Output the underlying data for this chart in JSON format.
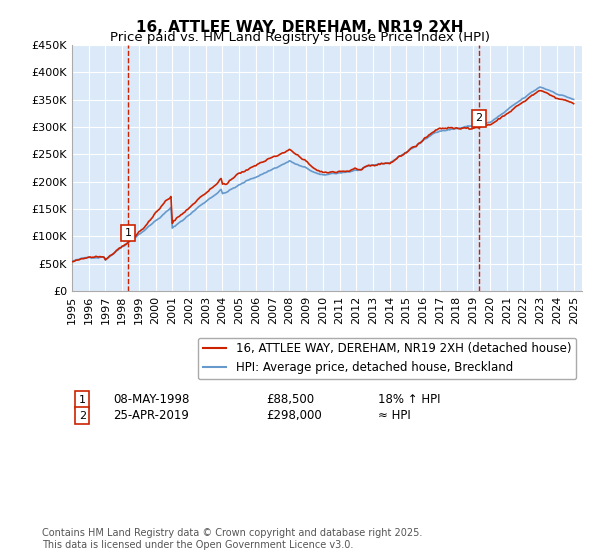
{
  "title": "16, ATTLEE WAY, DEREHAM, NR19 2XH",
  "subtitle": "Price paid vs. HM Land Registry's House Price Index (HPI)",
  "ylabel_ticks": [
    "£0",
    "£50K",
    "£100K",
    "£150K",
    "£200K",
    "£250K",
    "£300K",
    "£350K",
    "£400K",
    "£450K"
  ],
  "ylim": [
    0,
    450000
  ],
  "xlim_start": 1995.0,
  "xlim_end": 2025.5,
  "sale1_date": 1998.35,
  "sale1_price": 88500,
  "sale1_label": "1",
  "sale2_date": 2019.32,
  "sale2_price": 298000,
  "sale2_label": "2",
  "background_color": "#dce9f8",
  "plot_bg": "#dce9f8",
  "grid_color": "#ffffff",
  "hpi_line_color": "#6699cc",
  "price_line_color": "#cc2200",
  "dashed_line_color": "#cc2200",
  "legend_line1": "16, ATTLEE WAY, DEREHAM, NR19 2XH (detached house)",
  "legend_line2": "HPI: Average price, detached house, Breckland",
  "annotation1_date": "08-MAY-1998",
  "annotation1_price": "£88,500",
  "annotation1_hpi": "18% ↑ HPI",
  "annotation2_date": "25-APR-2019",
  "annotation2_price": "£298,000",
  "annotation2_hpi": "≈ HPI",
  "footnote": "Contains HM Land Registry data © Crown copyright and database right 2025.\nThis data is licensed under the Open Government Licence v3.0.",
  "title_fontsize": 11,
  "subtitle_fontsize": 9.5,
  "tick_fontsize": 8,
  "legend_fontsize": 8.5,
  "footnote_fontsize": 7
}
